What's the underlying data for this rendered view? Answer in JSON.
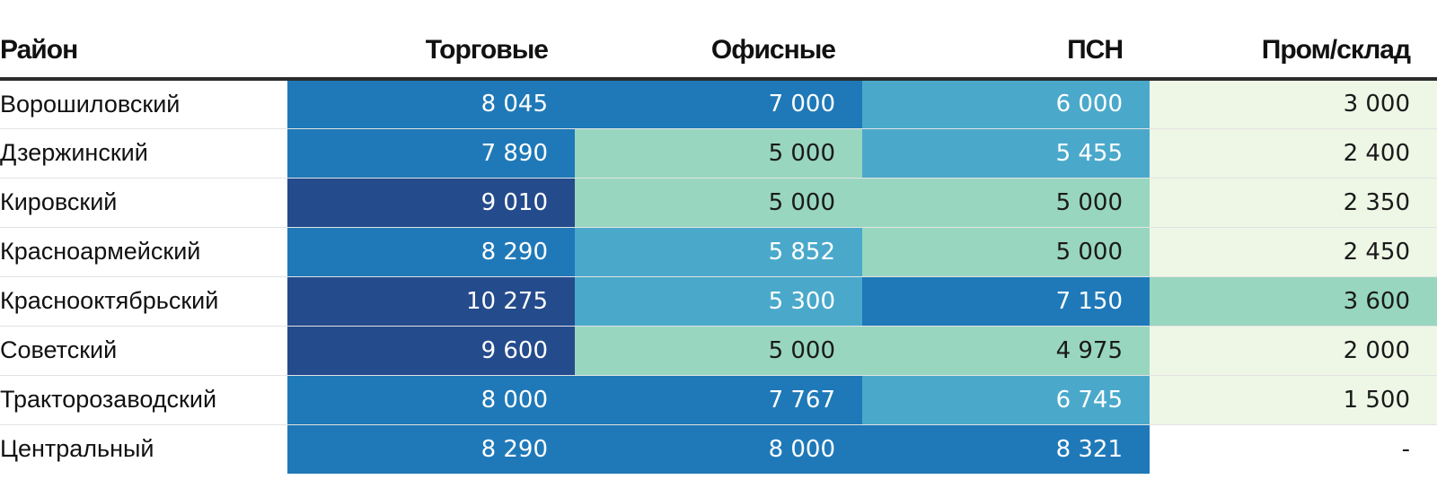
{
  "colors": {
    "darkest": "#244b8c",
    "dark": "#1f79b8",
    "mid": "#4aa9cb",
    "light": "#98d6c0",
    "pale": "#eef7e6",
    "none": "#ffffff"
  },
  "chart_data": {
    "type": "table",
    "columns": [
      "Район",
      "Торговые",
      "Офисные",
      "ПСН",
      "Пром/склад"
    ],
    "rows": [
      {
        "name": "Ворошиловский",
        "values": [
          "8 045",
          "7 000",
          "6 000",
          "3 000"
        ],
        "levels": [
          "dark",
          "dark",
          "mid",
          "pale"
        ]
      },
      {
        "name": "Дзержинский",
        "values": [
          "7 890",
          "5 000",
          "5 455",
          "2 400"
        ],
        "levels": [
          "dark",
          "light",
          "mid",
          "pale"
        ]
      },
      {
        "name": "Кировский",
        "values": [
          "9 010",
          "5 000",
          "5 000",
          "2 350"
        ],
        "levels": [
          "darkest",
          "light",
          "light",
          "pale"
        ]
      },
      {
        "name": "Красноармейский",
        "values": [
          "8 290",
          "5 852",
          "5 000",
          "2 450"
        ],
        "levels": [
          "dark",
          "mid",
          "light",
          "pale"
        ]
      },
      {
        "name": "Краснооктябрьский",
        "values": [
          "10 275",
          "5 300",
          "7 150",
          "3 600"
        ],
        "levels": [
          "darkest",
          "mid",
          "dark",
          "light"
        ]
      },
      {
        "name": "Советский",
        "values": [
          "9 600",
          "5 000",
          "4 975",
          "2 000"
        ],
        "levels": [
          "darkest",
          "light",
          "light",
          "pale"
        ]
      },
      {
        "name": "Тракторозаводский",
        "values": [
          "8 000",
          "7 767",
          "6 745",
          "1 500"
        ],
        "levels": [
          "dark",
          "dark",
          "mid",
          "pale"
        ]
      },
      {
        "name": "Центральный",
        "values": [
          "8 290",
          "8 000",
          "8 321",
          "-"
        ],
        "levels": [
          "dark",
          "dark",
          "dark",
          "none"
        ]
      }
    ]
  }
}
